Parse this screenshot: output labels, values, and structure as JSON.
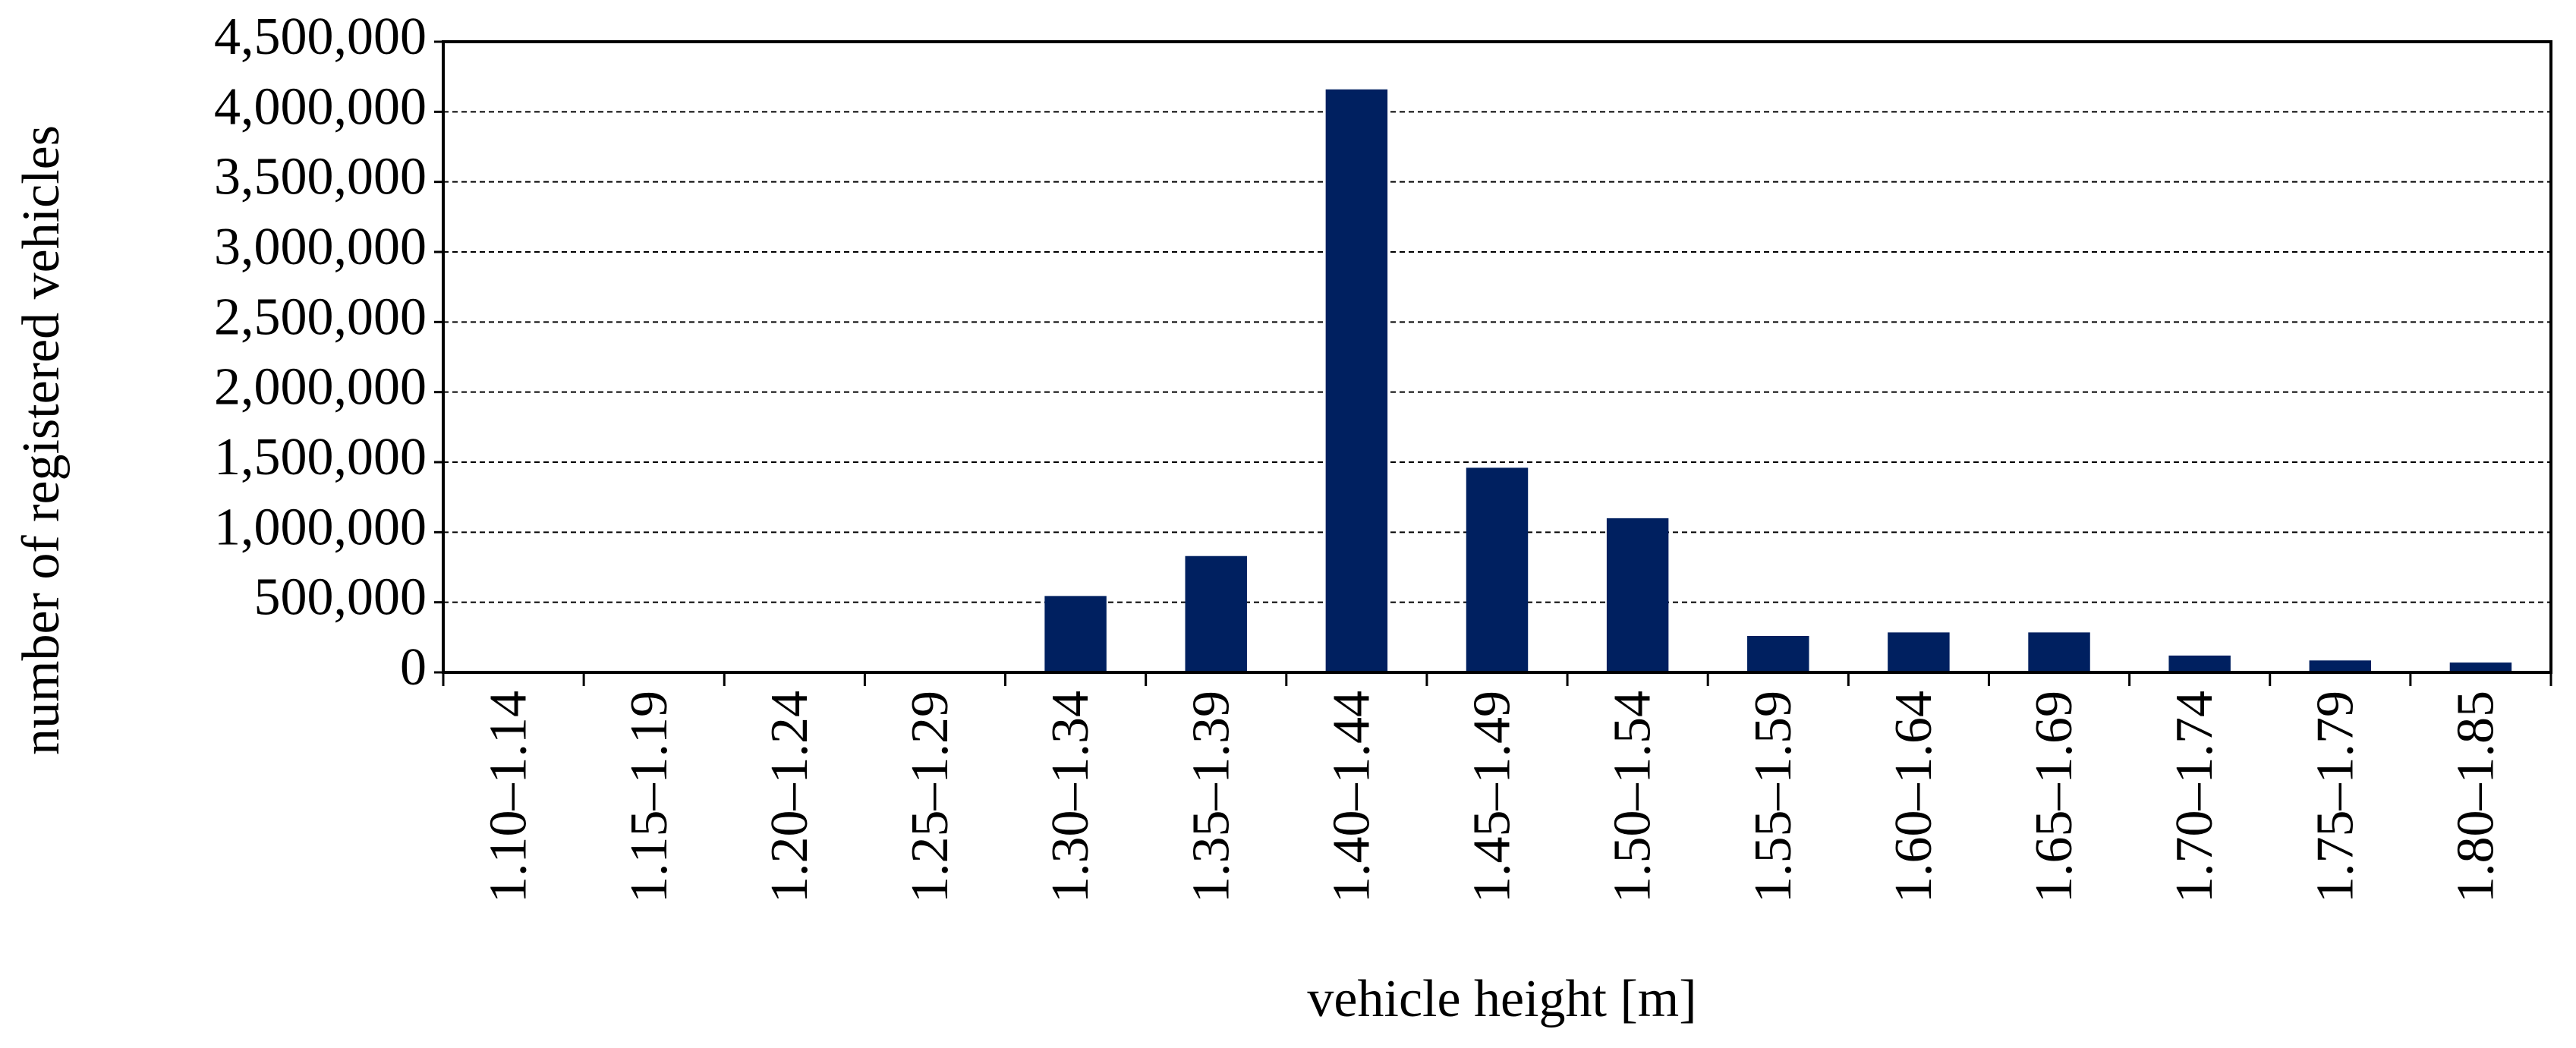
{
  "chart_data": {
    "type": "bar",
    "x_label": "vehicle height [m]",
    "y_label": "number of registered vehicles",
    "categories": [
      "1.10–1.14",
      "1.15–1.19",
      "1.20–1.24",
      "1.25–1.29",
      "1.30–1.34",
      "1.35–1.39",
      "1.40–1.44",
      "1.45–1.49",
      "1.50–1.54",
      "1.55–1.59",
      "1.60–1.64",
      "1.65–1.69",
      "1.70–1.74",
      "1.75–1.79",
      "1.80–1.85"
    ],
    "values": [
      0,
      0,
      0,
      0,
      545000,
      830000,
      4160000,
      1460000,
      1100000,
      260000,
      285000,
      285000,
      120000,
      85000,
      70000
    ],
    "color": "#002060",
    "ylim": [
      0,
      4500000
    ],
    "yticks": [
      0,
      {
        "value": 500000,
        "label": "500,000"
      },
      {
        "value": 1000000,
        "label": "1,000,000"
      },
      {
        "value": 1500000,
        "label": "1,500,000"
      },
      {
        "value": 2000000,
        "label": "2,000,000"
      },
      {
        "value": 2500000,
        "label": "2,500,000"
      },
      {
        "value": 3000000,
        "label": "3,000,000"
      },
      {
        "value": 3500000,
        "label": "3,500,000"
      },
      {
        "value": 4000000,
        "label": "4,000,000"
      },
      {
        "value": 4500000,
        "label": "4,500,000"
      }
    ],
    "grid": true
  }
}
